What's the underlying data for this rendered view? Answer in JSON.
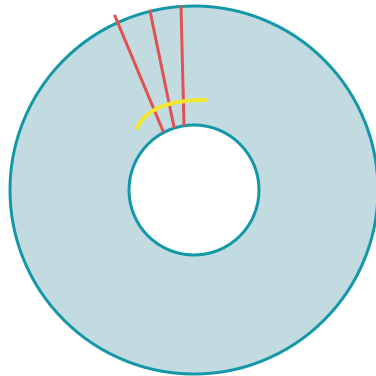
{
  "diagram": {
    "colors": {
      "annulus_fill": "#c2dbe0",
      "circle_stroke": "#1498a8",
      "inner_fill": "#ffffff",
      "ray_stroke": "#e05252",
      "arc_stroke": "#f2e62e"
    },
    "shapes": {
      "outer_circle": "circle",
      "inner_circle": "circle",
      "rays": [
        "ray",
        "ray",
        "ray"
      ],
      "arc": "angle-arc"
    }
  }
}
